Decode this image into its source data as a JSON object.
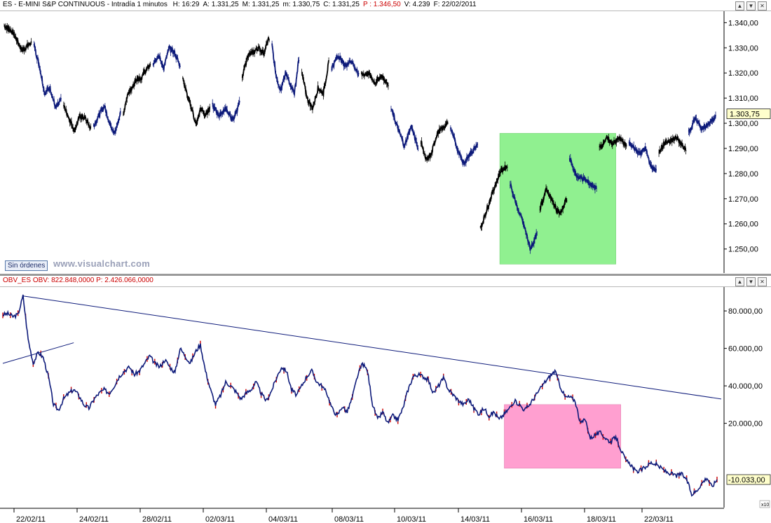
{
  "price_header": {
    "title": "ES - E-MINI S&P CONTINUOUS - Intradía 1 minutos",
    "stats": [
      {
        "label": "H: 16:29",
        "color": "#000000"
      },
      {
        "label": "A: 1.331,25",
        "color": "#000000"
      },
      {
        "label": "M: 1.331,25",
        "color": "#000000"
      },
      {
        "label": "m: 1.330,75",
        "color": "#000000"
      },
      {
        "label": "C: 1.331,25",
        "color": "#000000"
      },
      {
        "label": "P : 1.346,50",
        "color": "#cc0000"
      },
      {
        "label": "V: 4.239",
        "color": "#000000"
      },
      {
        "label": "F: 22/02/2011",
        "color": "#000000"
      }
    ]
  },
  "indicator_header": {
    "name": "OBV_ES",
    "value_label": "OBV: 822.848,0000",
    "p_label": "P: 2.426.066,0000",
    "color": "#cc0000"
  },
  "badge_text": "Sin órdenes",
  "watermark": "www.visualchart.com",
  "x10_label": "x10",
  "window_buttons": [
    "▲",
    "▼",
    "✕"
  ],
  "chart_data": [
    {
      "type": "line",
      "name": "ES - E-MINI S&P CONTINUOUS",
      "y_ticks": [
        1250,
        1260,
        1270,
        1280,
        1290,
        1300,
        1310,
        1320,
        1330,
        1340
      ],
      "y_tick_labels": [
        "1.250,00",
        "1.260,00",
        "1.270,00",
        "1.280,00",
        "1.290,00",
        "1.300,00",
        "1.310,00",
        "1.320,00",
        "1.330,00",
        "1.340,00"
      ],
      "ylim": [
        1241,
        1344
      ],
      "last_value": 1303.75,
      "last_value_label": "1.303,75",
      "session_colors": [
        "#000000",
        "#0d1a7a"
      ],
      "sessions": [
        [
          1339,
          1336,
          1329,
          1332
        ],
        [
          1331,
          1323,
          1312,
          1314,
          1306,
          1309
        ],
        [
          1307,
          1302,
          1297,
          1303,
          1302,
          1298
        ],
        [
          1299,
          1303,
          1307,
          1300,
          1296,
          1304
        ],
        [
          1303,
          1312,
          1314,
          1318,
          1318,
          1321,
          1323
        ],
        [
          1324,
          1327,
          1322,
          1330,
          1328,
          1323
        ],
        [
          1318,
          1311,
          1306,
          1299,
          1306,
          1303,
          1306
        ],
        [
          1307,
          1303,
          1306,
          1301,
          1308
        ],
        [
          1318,
          1327,
          1328,
          1330,
          1328,
          1334
        ],
        [
          1331,
          1318,
          1313,
          1320,
          1316,
          1312,
          1326
        ],
        [
          1320,
          1310,
          1306,
          1314,
          1312,
          1324
        ],
        [
          1322,
          1327,
          1323,
          1325,
          1319
        ],
        [
          1319,
          1320,
          1316,
          1319,
          1315
        ],
        [
          1306,
          1298,
          1291,
          1299,
          1290
        ],
        [
          1293,
          1285,
          1288,
          1296,
          1298,
          1300
        ],
        [
          1298,
          1290,
          1284,
          1288,
          1292
        ],
        [
          1258,
          1266,
          1274,
          1281,
          1283
        ],
        [
          1276,
          1267,
          1260,
          1250,
          1256
        ],
        [
          1266,
          1274,
          1268,
          1264,
          1270
        ],
        [
          1286,
          1279,
          1278,
          1276,
          1274
        ],
        [
          1290,
          1294,
          1292,
          1294,
          1291
        ],
        [
          1292,
          1290,
          1288,
          1290,
          1283,
          1281
        ],
        [
          1289,
          1293,
          1294,
          1290
        ],
        [
          1296,
          1302,
          1298,
          1300,
          1303
        ]
      ],
      "highlight": {
        "color": "#90f090",
        "y_range": [
          1244,
          1296
        ]
      }
    },
    {
      "type": "line",
      "name": "OBV_ES",
      "y_ticks": [
        20000,
        40000,
        60000,
        80000
      ],
      "y_tick_labels": [
        "20.000,00",
        "40.000,00",
        "60.000,00",
        "80.000,00"
      ],
      "ylim": [
        -25000,
        92000
      ],
      "last_value": -10033,
      "last_value_label": "-10.033,00",
      "line_color": "#0d1a7a",
      "spike_color": "#cc0000",
      "values": [
        78000,
        78500,
        77000,
        78000,
        88000,
        65000,
        52000,
        58000,
        55000,
        45000,
        30000,
        27000,
        33000,
        36000,
        38000,
        35000,
        30000,
        28000,
        33000,
        36000,
        38000,
        36000,
        40000,
        45000,
        48000,
        50000,
        46000,
        48000,
        52000,
        56000,
        52000,
        50000,
        54000,
        50000,
        47000,
        60000,
        56000,
        52000,
        58000,
        62000,
        48000,
        38000,
        30000,
        35000,
        42000,
        40000,
        37000,
        33000,
        36000,
        38000,
        42000,
        36000,
        32000,
        37000,
        44000,
        50000,
        48000,
        38000,
        35000,
        40000,
        45000,
        48000,
        42000,
        40000,
        36000,
        28000,
        24000,
        29000,
        26000,
        34000,
        45000,
        52000,
        48000,
        30000,
        22000,
        26000,
        20000,
        24000,
        22000,
        28000,
        38000,
        45000,
        46000,
        45000,
        43000,
        36000,
        40000,
        44000,
        38000,
        35000,
        32000,
        30000,
        33000,
        28000,
        25000,
        28000,
        24000,
        26000,
        22000,
        25000,
        28000,
        32000,
        30000,
        27000,
        30000,
        34000,
        38000,
        42000,
        45000,
        48000,
        40000,
        34000,
        34000,
        32000,
        20000,
        22000,
        12000,
        14000,
        15000,
        12000,
        10000,
        13000,
        6000,
        0,
        -2000,
        -6000,
        -5000,
        -3000,
        -1000,
        -2000,
        -4000,
        -6000,
        -7000,
        -8000,
        -7000,
        -10000,
        -18000,
        -16000,
        -12000,
        -9000,
        -14000,
        -10000
      ],
      "trendline": {
        "from": [
          88000
        ],
        "to": [
          33000
        ]
      },
      "trendline_short": {
        "from": [
          62000
        ],
        "to": [
          63000
        ]
      },
      "highlight": {
        "color": "#ff9fd0",
        "y_range": [
          -4000,
          30000
        ]
      }
    }
  ],
  "x_tick_labels": [
    "22/02/11",
    "24/02/11",
    "28/02/11",
    "02/03/11",
    "04/03/11",
    "08/03/11",
    "10/03/11",
    "14/03/11",
    "16/03/11",
    "18/03/11",
    "22/03/11"
  ]
}
